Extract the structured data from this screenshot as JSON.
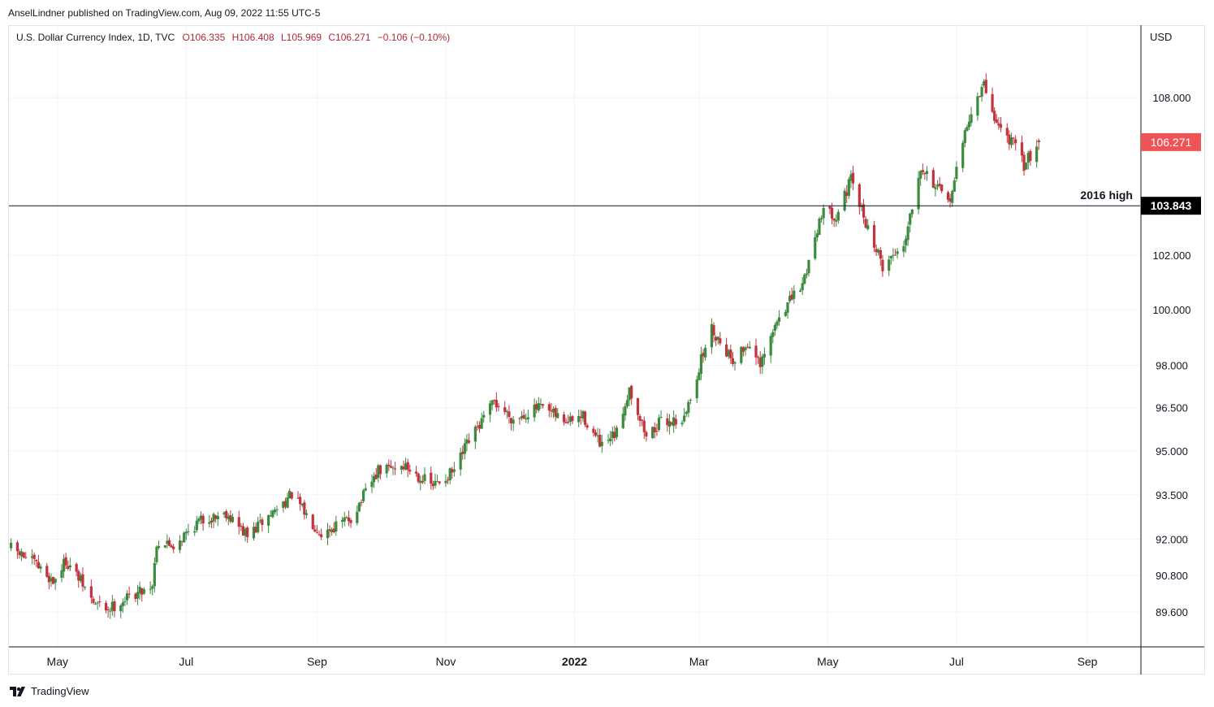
{
  "header": {
    "publisher_line": "AnselLindner published on TradingView.com, Aug 09, 2022 11:55 UTC-5"
  },
  "legend": {
    "symbol": "U.S. Dollar Currency Index, 1D, TVC",
    "open": "O106.335",
    "high": "H106.408",
    "low": "L105.969",
    "close": "C106.271",
    "change": "−0.106 (−0.10%)"
  },
  "axis": {
    "currency": "USD"
  },
  "footer": {
    "brand": "TradingView"
  },
  "colors": {
    "up": "#26a69a",
    "up_body": "#3b8a3e",
    "down": "#c2333d",
    "price_badge": "#f05355",
    "line_badge": "#000000",
    "grid": "#f0f3fa"
  },
  "chart_data": {
    "type": "candlestick",
    "title": "U.S. Dollar Currency Index, 1D, TVC",
    "x_axis": {
      "tick_labels": [
        "May",
        "Jul",
        "Sep",
        "Nov",
        "2022",
        "Mar",
        "May",
        "Jul",
        "Sep"
      ],
      "range": [
        "2021-04-08",
        "2022-09-26"
      ]
    },
    "y_axis": {
      "unit": "USD",
      "tick_labels": [
        "108.000",
        "102.000",
        "100.000",
        "98.000",
        "96.500",
        "95.000",
        "93.500",
        "92.000",
        "90.800",
        "89.600"
      ],
      "range": [
        88.5,
        110.0
      ],
      "scale": "log"
    },
    "grid": true,
    "last_price": {
      "value": 106.271,
      "label": "106.271"
    },
    "horizontal_line": {
      "value": 103.843,
      "price_label": "103.843",
      "annotation": "2016 high"
    },
    "anchors": [
      {
        "date": "2021-04-09",
        "close": 91.7
      },
      {
        "date": "2021-04-20",
        "close": 91.2
      },
      {
        "date": "2021-04-29",
        "close": 90.6
      },
      {
        "date": "2021-05-05",
        "close": 91.3
      },
      {
        "date": "2021-05-12",
        "close": 90.6
      },
      {
        "date": "2021-05-18",
        "close": 89.9
      },
      {
        "date": "2021-05-25",
        "close": 89.7
      },
      {
        "date": "2021-06-04",
        "close": 90.1
      },
      {
        "date": "2021-06-15",
        "close": 90.5
      },
      {
        "date": "2021-06-17",
        "close": 91.9
      },
      {
        "date": "2021-06-25",
        "close": 91.8
      },
      {
        "date": "2021-07-07",
        "close": 92.6
      },
      {
        "date": "2021-07-20",
        "close": 92.9
      },
      {
        "date": "2021-07-30",
        "close": 92.1
      },
      {
        "date": "2021-08-11",
        "close": 92.9
      },
      {
        "date": "2021-08-20",
        "close": 93.5
      },
      {
        "date": "2021-08-27",
        "close": 92.8
      },
      {
        "date": "2021-09-03",
        "close": 92.2
      },
      {
        "date": "2021-09-17",
        "close": 92.7
      },
      {
        "date": "2021-09-30",
        "close": 94.3
      },
      {
        "date": "2021-10-12",
        "close": 94.5
      },
      {
        "date": "2021-10-26",
        "close": 93.8
      },
      {
        "date": "2021-11-05",
        "close": 94.3
      },
      {
        "date": "2021-11-11",
        "close": 95.2
      },
      {
        "date": "2021-11-24",
        "close": 96.7
      },
      {
        "date": "2021-12-03",
        "close": 96.1
      },
      {
        "date": "2021-12-15",
        "close": 96.5
      },
      {
        "date": "2021-12-29",
        "close": 96.0
      },
      {
        "date": "2022-01-05",
        "close": 96.2
      },
      {
        "date": "2022-01-14",
        "close": 95.1
      },
      {
        "date": "2022-01-21",
        "close": 95.6
      },
      {
        "date": "2022-01-27",
        "close": 97.2
      },
      {
        "date": "2022-02-04",
        "close": 95.5
      },
      {
        "date": "2022-02-11",
        "close": 96.0
      },
      {
        "date": "2022-02-22",
        "close": 96.1
      },
      {
        "date": "2022-03-04",
        "close": 98.7
      },
      {
        "date": "2022-03-07",
        "close": 99.3
      },
      {
        "date": "2022-03-17",
        "close": 98.2
      },
      {
        "date": "2022-03-25",
        "close": 98.8
      },
      {
        "date": "2022-03-30",
        "close": 97.9
      },
      {
        "date": "2022-04-08",
        "close": 99.8
      },
      {
        "date": "2022-04-19",
        "close": 100.9
      },
      {
        "date": "2022-04-28",
        "close": 103.6
      },
      {
        "date": "2022-05-05",
        "close": 103.5
      },
      {
        "date": "2022-05-12",
        "close": 104.8
      },
      {
        "date": "2022-05-20",
        "close": 103.0
      },
      {
        "date": "2022-05-27",
        "close": 101.6
      },
      {
        "date": "2022-06-06",
        "close": 102.4
      },
      {
        "date": "2022-06-14",
        "close": 105.4
      },
      {
        "date": "2022-06-27",
        "close": 103.9
      },
      {
        "date": "2022-07-01",
        "close": 105.1
      },
      {
        "date": "2022-07-06",
        "close": 107.0
      },
      {
        "date": "2022-07-14",
        "close": 108.5
      },
      {
        "date": "2022-07-20",
        "close": 107.0
      },
      {
        "date": "2022-07-28",
        "close": 106.2
      },
      {
        "date": "2022-08-02",
        "close": 105.4
      },
      {
        "date": "2022-08-09",
        "close": 106.271
      }
    ]
  }
}
